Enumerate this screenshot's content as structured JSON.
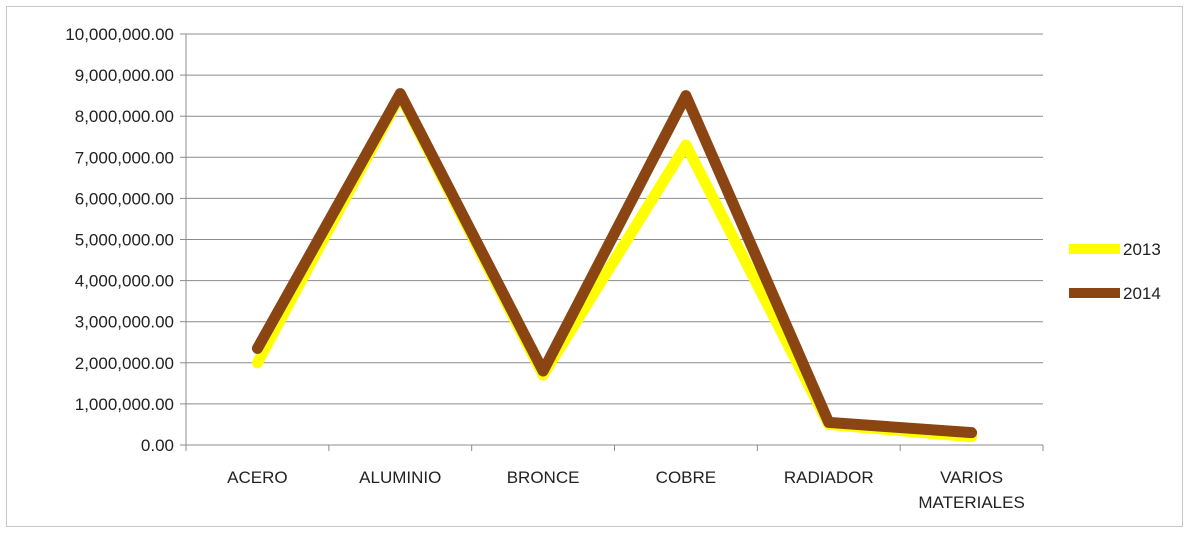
{
  "chart_data": {
    "type": "line",
    "title": "",
    "xlabel": "",
    "ylabel": "",
    "categories": [
      [
        "ACERO"
      ],
      [
        "ALUMINIO"
      ],
      [
        "BRONCE"
      ],
      [
        "COBRE"
      ],
      [
        "RADIADOR"
      ],
      [
        "VARIOS",
        "MATERIALES"
      ]
    ],
    "series": [
      {
        "name": "2013",
        "color": "#ffff00",
        "values": [
          2000000,
          8500000,
          1700000,
          7300000,
          500000,
          200000
        ]
      },
      {
        "name": "2014",
        "color": "#8b4513",
        "values": [
          2350000,
          8550000,
          1800000,
          8500000,
          550000,
          300000
        ]
      }
    ],
    "ylim": [
      0,
      10000000
    ],
    "y_ticks": [
      "0.00",
      "1,000,000.00",
      "2,000,000.00",
      "3,000,000.00",
      "4,000,000.00",
      "5,000,000.00",
      "6,000,000.00",
      "7,000,000.00",
      "8,000,000.00",
      "9,000,000.00",
      "10,000,000.00"
    ],
    "grid": true,
    "legend_position": "right"
  }
}
